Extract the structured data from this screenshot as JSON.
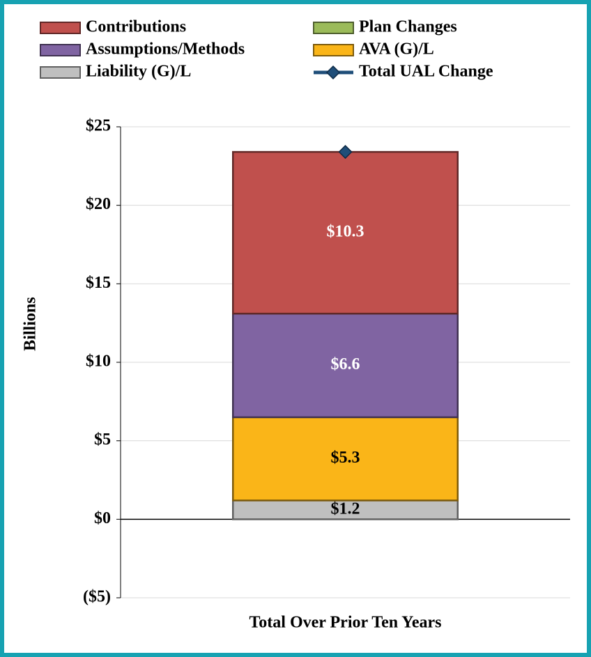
{
  "chart_data": {
    "type": "bar",
    "categories": [
      "Total Over Prior Ten Years"
    ],
    "y_label": "Billions",
    "series": [
      {
        "name": "Plan Changes",
        "type": "bar",
        "color": "#9bbb59",
        "values": [
          0
        ]
      },
      {
        "name": "Liability (G)/L",
        "type": "bar",
        "color": "#bfbfbf",
        "label_color": "#000000",
        "values": [
          1.2
        ],
        "value_labels": [
          "$1.2"
        ]
      },
      {
        "name": "AVA (G)/L",
        "type": "bar",
        "color": "#fab518",
        "label_color": "#000000",
        "values": [
          5.3
        ],
        "value_labels": [
          "$5.3"
        ]
      },
      {
        "name": "Assumptions/Methods",
        "type": "bar",
        "color": "#8064a2",
        "label_color": "#ffffff",
        "values": [
          6.6
        ],
        "value_labels": [
          "$6.6"
        ]
      },
      {
        "name": "Contributions",
        "type": "bar",
        "color": "#c0504d",
        "label_color": "#ffffff",
        "values": [
          10.3
        ],
        "value_labels": [
          "$10.3"
        ]
      },
      {
        "name": "Total UAL Change",
        "type": "line",
        "color": "#1f4e79",
        "values": [
          23.4
        ]
      }
    ],
    "legend_order": [
      4,
      0,
      3,
      2,
      1,
      5
    ],
    "ylim": [
      -5,
      25
    ],
    "yticks": [
      {
        "value": -5,
        "label": "($5)"
      },
      {
        "value": 0,
        "label": "$0"
      },
      {
        "value": 5,
        "label": "$5"
      },
      {
        "value": 10,
        "label": "$10"
      },
      {
        "value": 15,
        "label": "$15"
      },
      {
        "value": 20,
        "label": "$20"
      },
      {
        "value": 25,
        "label": "$25"
      }
    ],
    "grid": true
  }
}
